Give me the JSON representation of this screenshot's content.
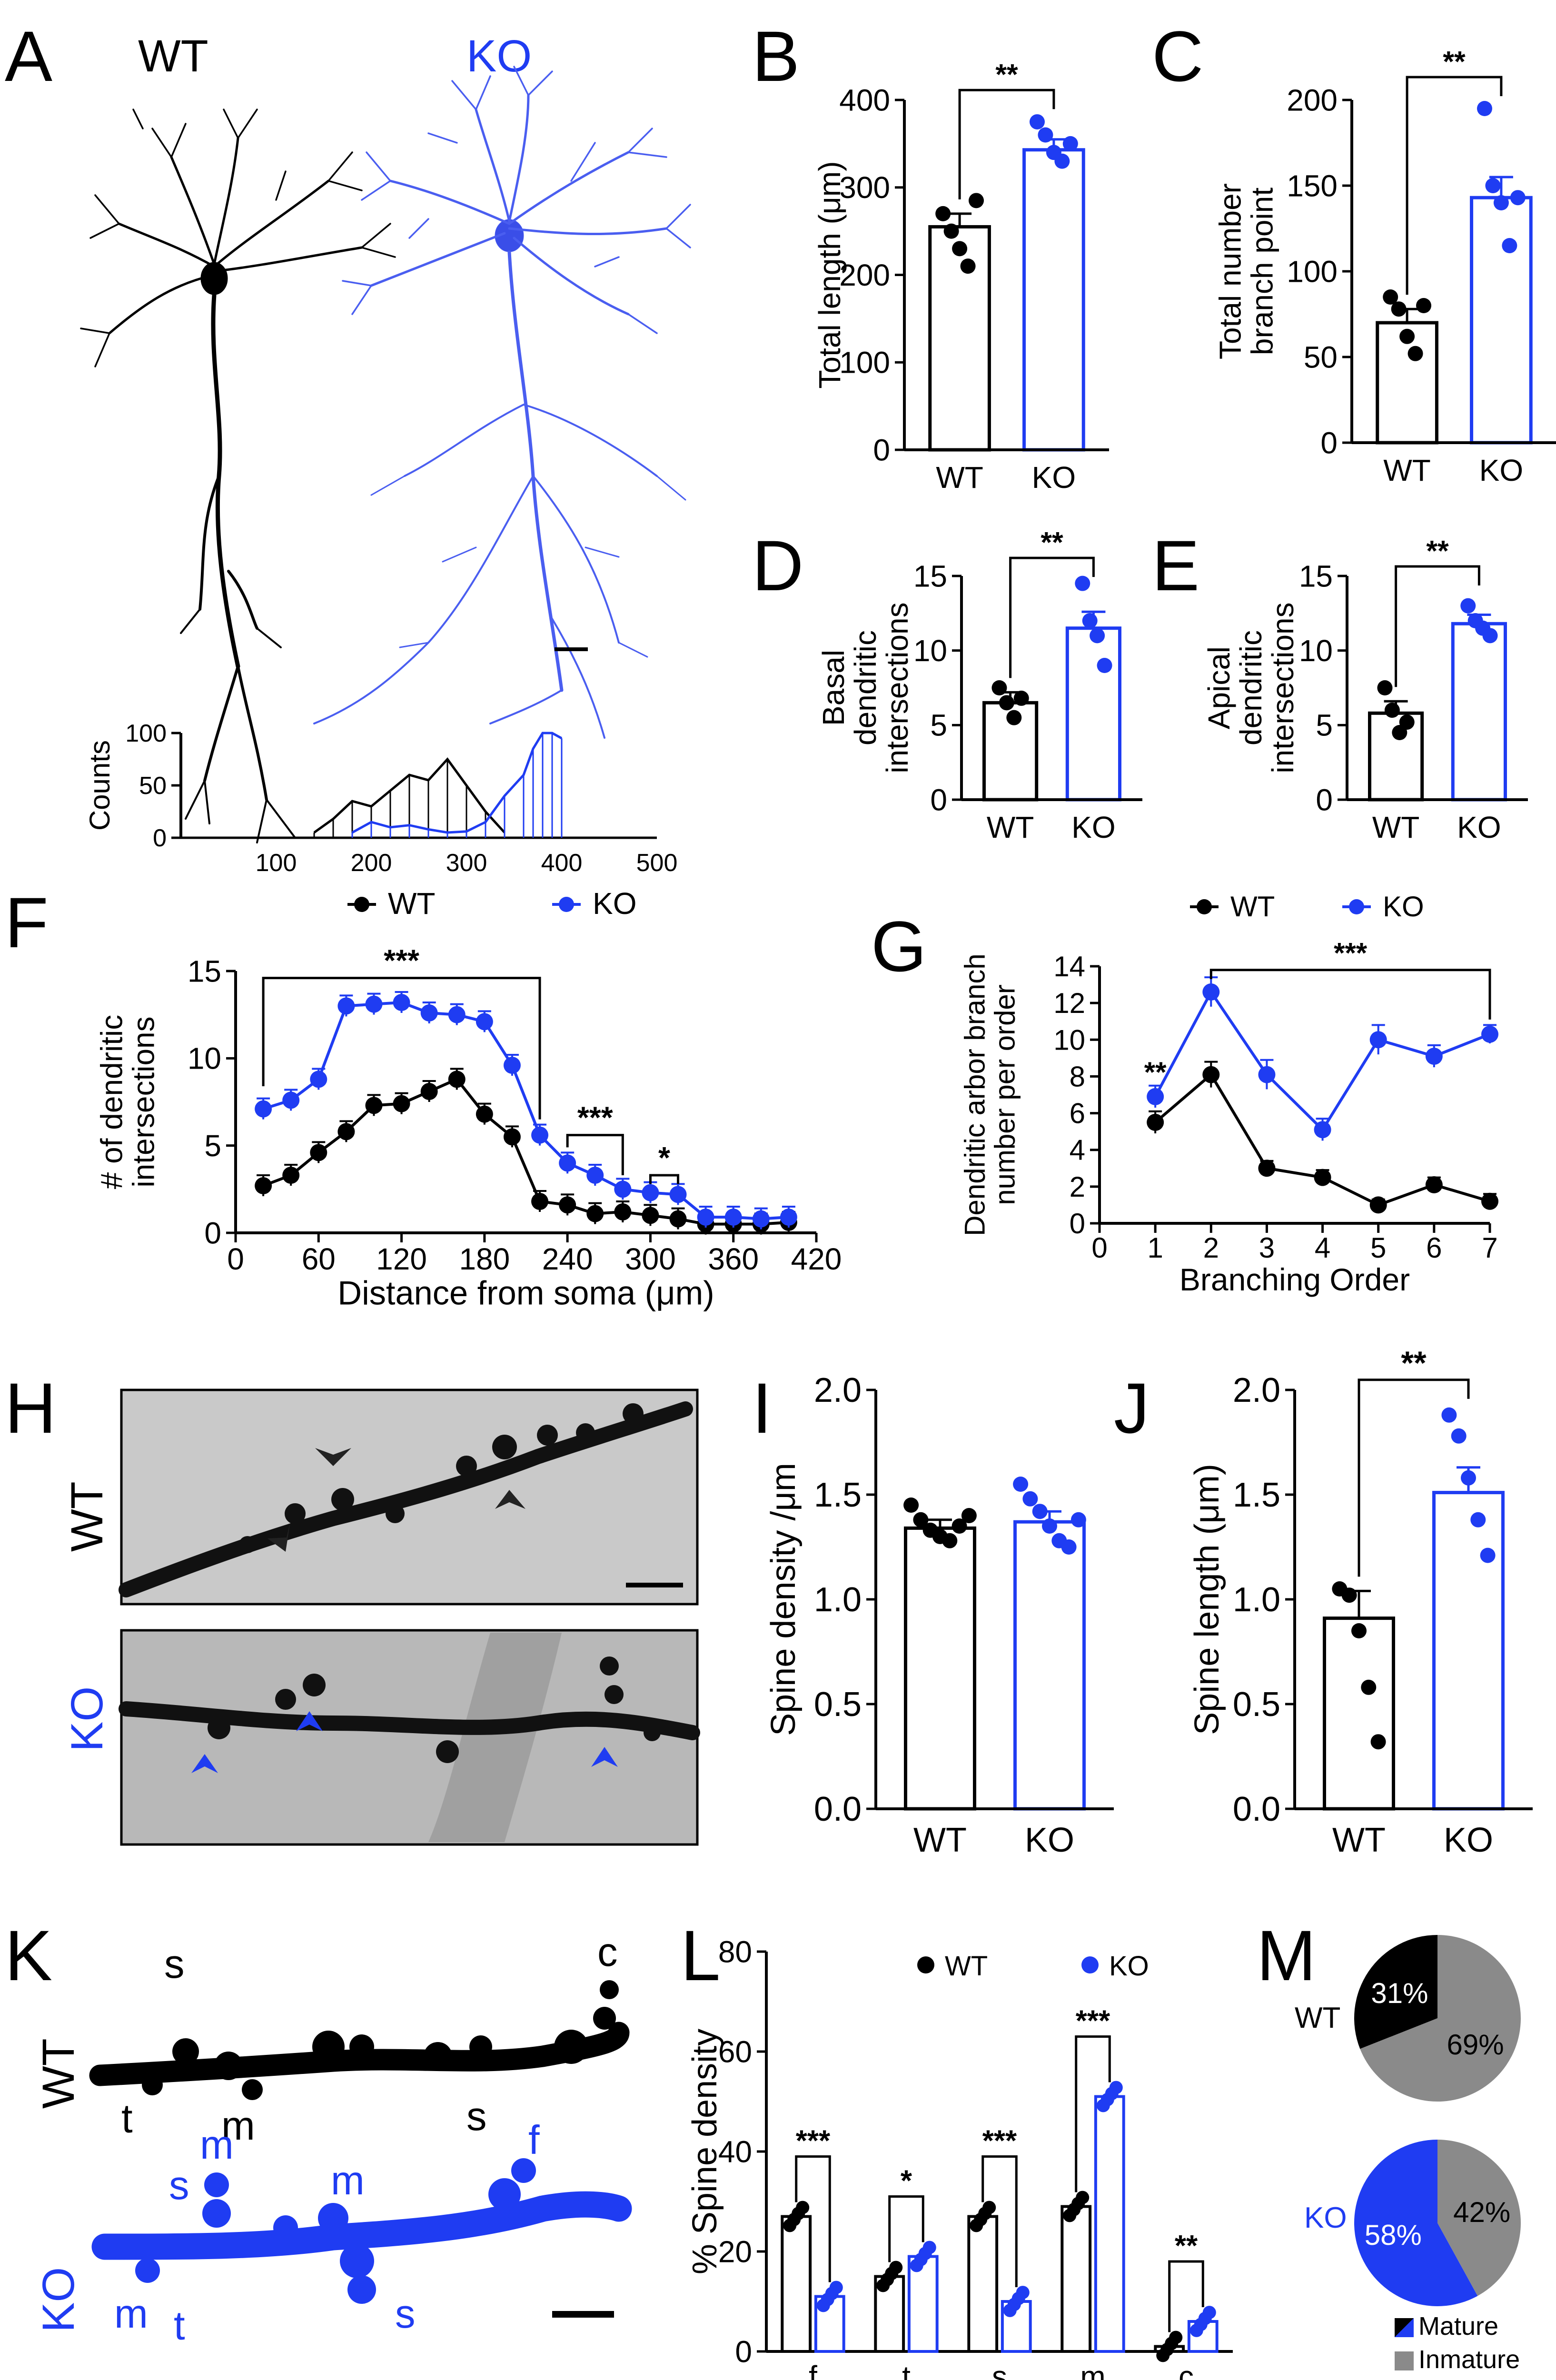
{
  "colors": {
    "wt": "#000000",
    "ko": "#1f3cf2",
    "ko_light": "#5b6ee8",
    "gray": "#8a8a8a",
    "img_bg": "#c9c9c9",
    "img_bg_dark": "#a9a9a9"
  },
  "panels": {
    "A": {
      "letter": "A",
      "wt_label": "WT",
      "ko_label": "KO"
    },
    "H": {
      "letter": "H",
      "wt_label": "WT",
      "ko_label": "KO"
    },
    "K": {
      "letter": "K",
      "wt_label": "WT",
      "ko_label": "KO",
      "wt_spine_labels": [
        "s",
        "c",
        "t",
        "m",
        "s"
      ],
      "ko_spine_labels": [
        "m",
        "s",
        "m",
        "f",
        "m",
        "t",
        "s"
      ]
    }
  },
  "chart_data": [
    {
      "panel": "A-inset",
      "type": "bar",
      "title": "",
      "ylabel": "Counts",
      "xlabel": "",
      "xlim": [
        0,
        500
      ],
      "xticks": [
        "100",
        "200",
        "300",
        "400",
        "500"
      ],
      "ylim": [
        0,
        100
      ],
      "yticks": [
        "0",
        "50",
        "100"
      ],
      "series": [
        {
          "name": "WT",
          "x": [
            140,
            160,
            180,
            200,
            220,
            240,
            260,
            280,
            300,
            320,
            340
          ],
          "values": [
            5,
            18,
            35,
            30,
            45,
            60,
            55,
            75,
            50,
            25,
            5
          ]
        },
        {
          "name": "KO",
          "x": [
            180,
            200,
            220,
            240,
            260,
            280,
            300,
            320,
            340,
            360,
            370,
            380,
            390,
            400
          ],
          "values": [
            5,
            15,
            10,
            12,
            8,
            5,
            6,
            15,
            40,
            60,
            85,
            100,
            100,
            95
          ]
        }
      ]
    },
    {
      "panel": "B",
      "type": "bar",
      "ylabel": "Total length (μm)",
      "categories": [
        "WT",
        "KO"
      ],
      "values": [
        255,
        343
      ],
      "errors": [
        15,
        12
      ],
      "ylim": [
        0,
        400
      ],
      "yticks": [
        "0",
        "100",
        "200",
        "300",
        "400"
      ],
      "significance": "**",
      "points": [
        [
          270,
          250,
          230,
          210,
          285
        ],
        [
          375,
          360,
          340,
          330,
          350
        ]
      ]
    },
    {
      "panel": "C",
      "type": "bar",
      "ylabel": "Total number branch point",
      "categories": [
        "WT",
        "KO"
      ],
      "values": [
        70,
        143
      ],
      "errors": [
        8,
        12
      ],
      "ylim": [
        0,
        200
      ],
      "yticks": [
        "0",
        "50",
        "100",
        "150",
        "200"
      ],
      "significance": "**",
      "points": [
        [
          85,
          78,
          62,
          52,
          80
        ],
        [
          195,
          150,
          140,
          115,
          143
        ]
      ]
    },
    {
      "panel": "D",
      "type": "bar",
      "ylabel": "Basal dendritic intersections",
      "categories": [
        "WT",
        "KO"
      ],
      "values": [
        6.5,
        11.5
      ],
      "errors": [
        0.7,
        1.1
      ],
      "ylim": [
        0,
        15
      ],
      "yticks": [
        "0",
        "5",
        "10",
        "15"
      ],
      "significance": "**",
      "points": [
        [
          7.5,
          6.5,
          5.5,
          6.8
        ],
        [
          14.5,
          12,
          11,
          9
        ]
      ]
    },
    {
      "panel": "E",
      "type": "bar",
      "ylabel": "Apical dendritic intersections",
      "categories": [
        "WT",
        "KO"
      ],
      "values": [
        5.8,
        11.8
      ],
      "errors": [
        0.8,
        0.6
      ],
      "ylim": [
        0,
        15
      ],
      "yticks": [
        "0",
        "5",
        "10",
        "15"
      ],
      "significance": "**",
      "points": [
        [
          7.5,
          6,
          4.5,
          5.2
        ],
        [
          13,
          12,
          11.5,
          11
        ]
      ]
    },
    {
      "panel": "F",
      "type": "line",
      "title": "",
      "xlabel": "Distance from soma (μm)",
      "ylabel": "# of dendritic intersections",
      "x": [
        20,
        40,
        60,
        80,
        100,
        120,
        140,
        160,
        180,
        200,
        220,
        240,
        260,
        280,
        300,
        320,
        340,
        360,
        380,
        400
      ],
      "xlim": [
        0,
        420
      ],
      "xticks": [
        "0",
        "60",
        "120",
        "180",
        "240",
        "300",
        "360",
        "420"
      ],
      "ylim": [
        0,
        15
      ],
      "yticks": [
        "0",
        "5",
        "10",
        "15"
      ],
      "series": [
        {
          "name": "WT",
          "values": [
            2.7,
            3.3,
            4.6,
            5.8,
            7.3,
            7.4,
            8.1,
            8.8,
            6.8,
            5.5,
            1.8,
            1.6,
            1.1,
            1.2,
            1.0,
            0.8,
            0.5,
            0.5,
            0.5,
            0.6
          ]
        },
        {
          "name": "KO",
          "values": [
            7.1,
            7.6,
            8.8,
            13.0,
            13.1,
            13.2,
            12.6,
            12.5,
            12.1,
            9.6,
            5.6,
            4.0,
            3.3,
            2.5,
            2.3,
            2.2,
            0.9,
            0.9,
            0.8,
            0.9
          ]
        }
      ],
      "significance": [
        {
          "from": 20,
          "to": 220,
          "label": "***"
        },
        {
          "from": 240,
          "to": 280,
          "label": "***"
        },
        {
          "from": 300,
          "to": 320,
          "label": "*"
        }
      ]
    },
    {
      "panel": "G",
      "type": "line",
      "xlabel": "Branching Order",
      "ylabel": "Dendritic arbor branch number per order",
      "x": [
        1,
        2,
        3,
        4,
        5,
        6,
        7
      ],
      "xlim": [
        0,
        7
      ],
      "xticks": [
        "0",
        "1",
        "2",
        "3",
        "4",
        "5",
        "6",
        "7"
      ],
      "ylim": [
        0,
        14
      ],
      "yticks": [
        "0",
        "2",
        "4",
        "6",
        "8",
        "10",
        "12",
        "14"
      ],
      "series": [
        {
          "name": "WT",
          "values": [
            5.5,
            8.1,
            3.0,
            2.5,
            1.0,
            2.1,
            1.2
          ],
          "errors": [
            0.6,
            0.7,
            0.4,
            0.4,
            0.3,
            0.4,
            0.4
          ]
        },
        {
          "name": "KO",
          "values": [
            6.9,
            12.6,
            8.1,
            5.1,
            10.0,
            9.1,
            10.3
          ],
          "errors": [
            0.6,
            0.8,
            0.8,
            0.6,
            0.8,
            0.6,
            0.5
          ]
        }
      ],
      "significance": [
        {
          "at": 1,
          "label": "**"
        },
        {
          "from": 2,
          "to": 7,
          "label": "***"
        }
      ]
    },
    {
      "panel": "I",
      "type": "bar",
      "ylabel": "Spine density /μm",
      "categories": [
        "WT",
        "KO"
      ],
      "values": [
        1.34,
        1.37
      ],
      "errors": [
        0.04,
        0.05
      ],
      "ylim": [
        0,
        2.0
      ],
      "yticks": [
        "0.0",
        "0.5",
        "1.0",
        "1.5",
        "2.0"
      ],
      "significance": "",
      "points": [
        [
          1.45,
          1.38,
          1.33,
          1.3,
          1.28,
          1.35,
          1.4
        ],
        [
          1.55,
          1.48,
          1.42,
          1.35,
          1.28,
          1.25,
          1.38
        ]
      ]
    },
    {
      "panel": "J",
      "type": "bar",
      "ylabel": "Spine length (μm)",
      "categories": [
        "WT",
        "KO"
      ],
      "values": [
        0.91,
        1.51
      ],
      "errors": [
        0.13,
        0.12
      ],
      "ylim": [
        0,
        2.0
      ],
      "yticks": [
        "0.0",
        "0.5",
        "1.0",
        "1.5",
        "2.0"
      ],
      "significance": "**",
      "points": [
        [
          1.05,
          1.02,
          0.85,
          0.58,
          0.32
        ],
        [
          1.88,
          1.78,
          1.58,
          1.38,
          1.21
        ]
      ]
    },
    {
      "panel": "L",
      "type": "bar",
      "ylabel": "% Spine density",
      "categories": [
        "f",
        "t",
        "s",
        "m",
        "c"
      ],
      "ylim": [
        0,
        80
      ],
      "yticks": [
        "0",
        "20",
        "40",
        "60",
        "80"
      ],
      "series": [
        {
          "name": "WT",
          "values": [
            27,
            15,
            27,
            29,
            1
          ]
        },
        {
          "name": "KO",
          "values": [
            11,
            19,
            10,
            51,
            6
          ]
        }
      ],
      "significance": [
        "***",
        "*",
        "***",
        "***",
        "**"
      ]
    },
    {
      "panel": "M",
      "type": "pie",
      "charts": [
        {
          "name": "WT",
          "slices": [
            {
              "label": "Mature",
              "value": 31,
              "text": "31%"
            },
            {
              "label": "Inmature",
              "value": 69,
              "text": "69%"
            }
          ]
        },
        {
          "name": "KO",
          "slices": [
            {
              "label": "Mature",
              "value": 58,
              "text": "58%"
            },
            {
              "label": "Inmature",
              "value": 42,
              "text": "42%"
            }
          ]
        }
      ],
      "legend": [
        "Mature",
        "Inmature"
      ]
    }
  ]
}
